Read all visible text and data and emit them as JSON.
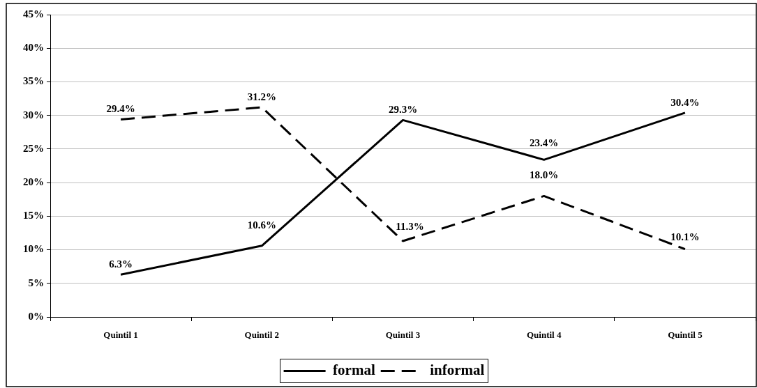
{
  "chart_data": {
    "type": "line",
    "categories": [
      "Quintil 1",
      "Quintil 2",
      "Quintil 3",
      "Quintil 4",
      "Quintil 5"
    ],
    "series": [
      {
        "name": "formal",
        "color": "#000000",
        "line_style": "solid",
        "values": [
          6.3,
          10.6,
          29.3,
          23.4,
          30.4
        ],
        "value_labels": [
          "6.3%",
          "10.6%",
          "29.3%",
          "23.4%",
          "30.4%"
        ]
      },
      {
        "name": "informal",
        "color": "#000000",
        "line_style": "dashed",
        "values": [
          29.4,
          31.2,
          11.3,
          18.0,
          10.1
        ],
        "value_labels": [
          "29.4%",
          "31.2%",
          "11.3%",
          "18.0%",
          "10.1%"
        ]
      }
    ],
    "ylim": [
      0,
      45
    ],
    "yticks": [
      {
        "value": 0,
        "label": "0%"
      },
      {
        "value": 5,
        "label": "5%"
      },
      {
        "value": 10,
        "label": "10%"
      },
      {
        "value": 15,
        "label": "15%"
      },
      {
        "value": 20,
        "label": "20%"
      },
      {
        "value": 25,
        "label": "25%"
      },
      {
        "value": 30,
        "label": "30%"
      },
      {
        "value": 35,
        "label": "35%"
      },
      {
        "value": 40,
        "label": "40%"
      },
      {
        "value": 45,
        "label": "45%"
      }
    ],
    "grid": "y",
    "legend": "bottom",
    "marker": "none"
  }
}
